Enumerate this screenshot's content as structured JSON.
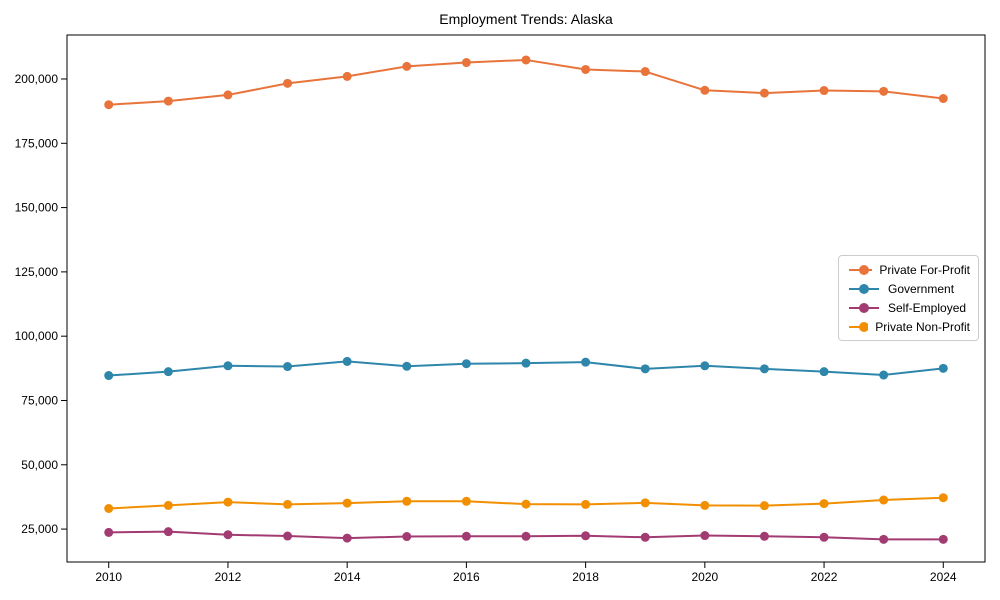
{
  "chart_data": {
    "type": "line",
    "title": "Employment Trends: Alaska",
    "xlabel": "",
    "ylabel": "",
    "grid": false,
    "legend_position": "center right",
    "background": "#ffffff",
    "axis_color": "#000000",
    "text_color": "#000000",
    "x": [
      2010,
      2011,
      2012,
      2013,
      2014,
      2015,
      2016,
      2017,
      2018,
      2019,
      2020,
      2021,
      2022,
      2023,
      2024
    ],
    "x_tick_values": [
      2010,
      2012,
      2014,
      2016,
      2018,
      2020,
      2022,
      2024
    ],
    "x_tick_labels": [
      "2010",
      "2012",
      "2014",
      "2016",
      "2018",
      "2020",
      "2022",
      "2024"
    ],
    "y_tick_values": [
      25000,
      50000,
      75000,
      100000,
      125000,
      150000,
      175000,
      200000
    ],
    "y_tick_labels": [
      "25,000",
      "50,000",
      "75,000",
      "100,000",
      "125,000",
      "150,000",
      "175,000",
      "200,000"
    ],
    "xlim": [
      2009.3,
      2024.7
    ],
    "ylim": [
      12200,
      217100
    ],
    "series": [
      {
        "name": "Private For-Profit",
        "color": "#E8743B",
        "marker": "circle",
        "values": [
          190000,
          191400,
          193800,
          198300,
          201000,
          204900,
          206400,
          207400,
          203700,
          202900,
          195600,
          194500,
          195500,
          195200,
          192400
        ]
      },
      {
        "name": "Government",
        "color": "#2E86AB",
        "marker": "circle",
        "values": [
          84700,
          86200,
          88500,
          88200,
          90200,
          88300,
          89300,
          89500,
          89900,
          87300,
          88500,
          87300,
          86200,
          84900,
          87500
        ]
      },
      {
        "name": "Self-Employed",
        "color": "#A23B72",
        "marker": "circle",
        "values": [
          23700,
          24000,
          22800,
          22300,
          21500,
          22100,
          22200,
          22200,
          22400,
          21800,
          22500,
          22200,
          21800,
          21000,
          21000
        ]
      },
      {
        "name": "Private Non-Profit",
        "color": "#F18F01",
        "marker": "circle",
        "values": [
          33000,
          34200,
          35500,
          34600,
          35100,
          35800,
          35800,
          34700,
          34600,
          35200,
          34200,
          34100,
          34900,
          36300,
          37200
        ]
      }
    ]
  }
}
